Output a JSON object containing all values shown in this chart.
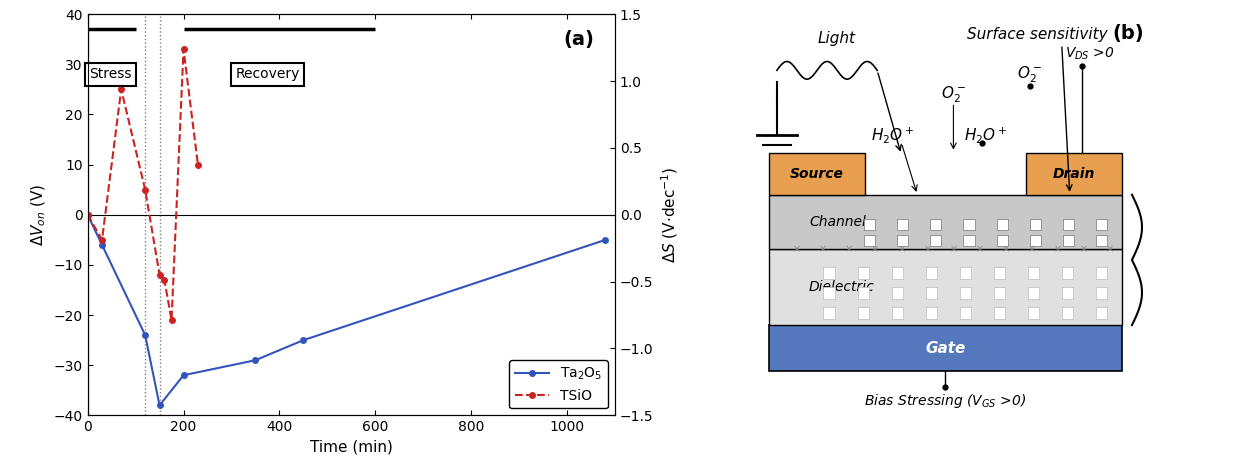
{
  "title_a": "(a)",
  "title_b": "(b)",
  "blue_x": [
    0,
    30,
    120,
    150,
    200,
    350,
    450,
    1080
  ],
  "blue_y": [
    0,
    -6,
    -24,
    -38,
    -32,
    -29,
    -25,
    -5
  ],
  "red_x": [
    0,
    30,
    70,
    120,
    150,
    160,
    175,
    200,
    230
  ],
  "red_y": [
    0,
    -5,
    25,
    5,
    -12,
    -13,
    -21,
    33,
    10
  ],
  "xlim": [
    0,
    1100
  ],
  "ylim_left": [
    -40,
    40
  ],
  "ylim_right": [
    -1.5,
    1.5
  ],
  "xlabel": "Time (min)",
  "vline_solid_x": 0,
  "vline_dashed1_x": 120,
  "vline_dashed2_x": 150,
  "blue_color": "#3355bb",
  "red_color": "#cc2222",
  "source_color": "#e8a050",
  "drain_color": "#e8a050",
  "gate_color": "#5577bb",
  "channel_color": "#c8c8c8",
  "dielectric_color": "#e0e0e0",
  "bg_color": "#f5f5f5"
}
